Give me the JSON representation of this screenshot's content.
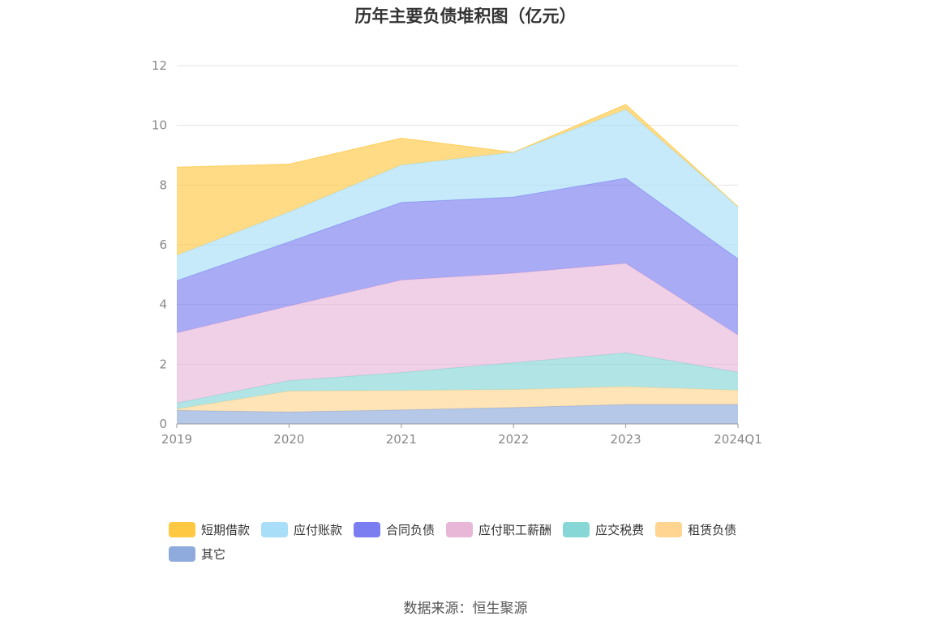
{
  "chart_data": {
    "type": "area",
    "stacked": true,
    "title": "历年主要负债堆积图（亿元）",
    "categories": [
      "2019",
      "2020",
      "2021",
      "2022",
      "2023",
      "2024Q1"
    ],
    "ylim": [
      0,
      12
    ],
    "yticks": [
      0,
      2,
      4,
      6,
      8,
      10,
      12
    ],
    "grid": true,
    "legend_position": "bottom",
    "series": [
      {
        "name": "其它",
        "color": "#8faadc",
        "values": [
          0.45,
          0.4,
          0.47,
          0.55,
          0.65,
          0.65
        ]
      },
      {
        "name": "租赁负债",
        "color": "#ffd591",
        "values": [
          0.05,
          0.7,
          0.65,
          0.6,
          0.6,
          0.48
        ]
      },
      {
        "name": "应交税费",
        "color": "#87d7d7",
        "values": [
          0.2,
          0.35,
          0.6,
          0.9,
          1.13,
          0.6
        ]
      },
      {
        "name": "应付职工薪酬",
        "color": "#e8b7d8",
        "values": [
          2.35,
          2.5,
          3.1,
          3.0,
          3.0,
          1.25
        ]
      },
      {
        "name": "合同负债",
        "color": "#7b7ef0",
        "values": [
          1.75,
          2.15,
          2.6,
          2.55,
          2.85,
          2.55
        ]
      },
      {
        "name": "应付账款",
        "color": "#a8def8",
        "values": [
          0.85,
          1.0,
          1.25,
          1.5,
          2.3,
          1.75
        ]
      },
      {
        "name": "短期借款",
        "color": "#ffc843",
        "values": [
          2.95,
          1.6,
          0.9,
          0.0,
          0.17,
          0.0
        ]
      }
    ]
  },
  "legend": [
    {
      "label": "短期借款",
      "color": "#ffc843"
    },
    {
      "label": "应付账款",
      "color": "#a8def8"
    },
    {
      "label": "合同负债",
      "color": "#7b7ef0"
    },
    {
      "label": "应付职工薪酬",
      "color": "#e8b7d8"
    },
    {
      "label": "应交税费",
      "color": "#87d7d7"
    },
    {
      "label": "租赁负债",
      "color": "#ffd591"
    },
    {
      "label": "其它",
      "color": "#8faadc"
    }
  ],
  "source": "数据来源：恒生聚源"
}
